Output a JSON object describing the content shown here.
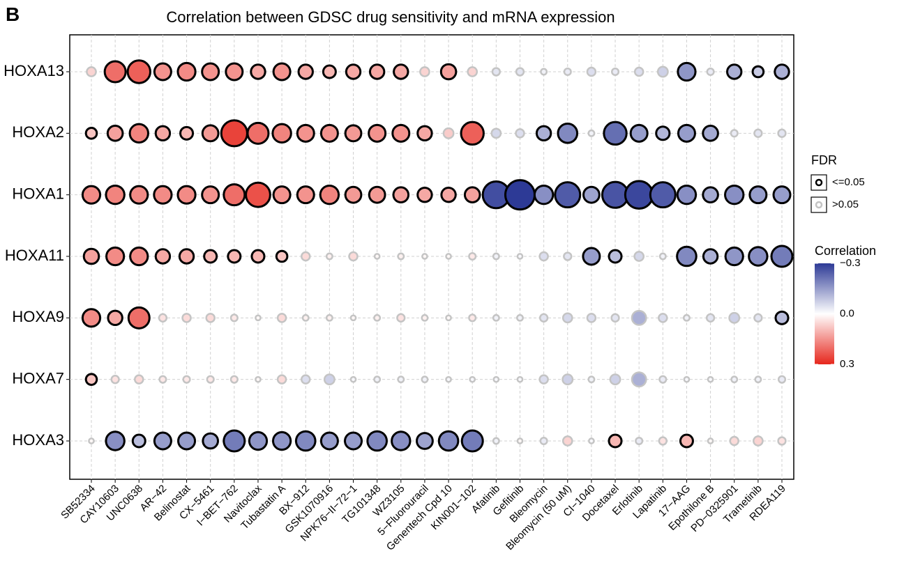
{
  "panel_label": "B",
  "chart_data": {
    "type": "dotmatrix",
    "title": "Correlation between GDSC drug sensitivity and mRNA expression",
    "categories": [
      "SB52334",
      "CAY10603",
      "UNC0638",
      "AR−42",
      "Belinostat",
      "CX−5461",
      "I−BET−762",
      "Navitoclax",
      "Tubastatin A",
      "BX−912",
      "GSK1070916",
      "NPK76−II−72−1",
      "TG101348",
      "WZ3105",
      "5−Fluorouracil",
      "Genentech Cpd 10",
      "KIN001−102",
      "Afatinib",
      "Gefitinib",
      "Bleomycin",
      "Bleomycin (50 uM)",
      "CI−1040",
      "Docetaxel",
      "Erlotinib",
      "Lapatinib",
      "17−AAG",
      "Epothilone B",
      "PD−0325901",
      "Trametinib",
      "RDEA119"
    ],
    "series": [
      {
        "name": "HOXA13",
        "values": [
          0.06,
          0.2,
          0.22,
          0.15,
          0.16,
          0.15,
          0.15,
          0.12,
          0.15,
          0.12,
          0.1,
          0.12,
          0.12,
          0.12,
          0.06,
          0.13,
          0.06,
          -0.04,
          -0.04,
          -0.02,
          -0.03,
          -0.05,
          -0.03,
          -0.05,
          -0.07,
          -0.16,
          -0.03,
          -0.12,
          -0.08,
          -0.12
        ],
        "significant": [
          false,
          true,
          true,
          true,
          true,
          true,
          true,
          true,
          true,
          true,
          true,
          true,
          true,
          true,
          false,
          true,
          false,
          false,
          false,
          false,
          false,
          false,
          false,
          false,
          false,
          true,
          false,
          true,
          true,
          true
        ]
      },
      {
        "name": "HOXA2",
        "values": [
          0.08,
          0.13,
          0.17,
          0.12,
          0.1,
          0.14,
          0.26,
          0.2,
          0.17,
          0.15,
          0.15,
          0.14,
          0.15,
          0.15,
          0.12,
          0.07,
          0.22,
          -0.06,
          -0.05,
          -0.12,
          -0.18,
          -0.02,
          -0.22,
          -0.15,
          -0.11,
          -0.15,
          -0.13,
          -0.03,
          -0.04,
          -0.04
        ],
        "significant": [
          true,
          true,
          true,
          true,
          true,
          true,
          true,
          true,
          true,
          true,
          true,
          true,
          true,
          true,
          true,
          false,
          true,
          false,
          false,
          true,
          true,
          false,
          true,
          true,
          true,
          true,
          true,
          false,
          false,
          false
        ]
      },
      {
        "name": "HOXA1",
        "values": [
          0.16,
          0.17,
          0.16,
          0.16,
          0.16,
          0.15,
          0.2,
          0.24,
          0.15,
          0.15,
          0.17,
          0.14,
          0.14,
          0.13,
          0.12,
          0.12,
          0.13,
          -0.27,
          -0.3,
          -0.17,
          -0.25,
          -0.14,
          -0.26,
          -0.28,
          -0.25,
          -0.17,
          -0.13,
          -0.17,
          -0.15,
          -0.15
        ],
        "significant": [
          true,
          true,
          true,
          true,
          true,
          true,
          true,
          true,
          true,
          true,
          true,
          true,
          true,
          true,
          true,
          true,
          true,
          true,
          true,
          true,
          true,
          true,
          true,
          true,
          true,
          true,
          true,
          true,
          true,
          true
        ]
      },
      {
        "name": "HOXA11",
        "values": [
          0.13,
          0.16,
          0.16,
          0.12,
          0.12,
          0.1,
          0.1,
          0.1,
          0.08,
          0.05,
          0.02,
          0.05,
          0.01,
          0.02,
          0.01,
          0.01,
          0.03,
          -0.02,
          -0.01,
          -0.05,
          -0.04,
          -0.15,
          -0.1,
          -0.06,
          -0.02,
          -0.18,
          -0.12,
          -0.16,
          -0.17,
          -0.2
        ],
        "significant": [
          true,
          true,
          true,
          true,
          true,
          true,
          true,
          true,
          true,
          false,
          false,
          false,
          false,
          false,
          false,
          false,
          false,
          false,
          false,
          false,
          false,
          true,
          true,
          false,
          false,
          true,
          true,
          true,
          true,
          true
        ]
      },
      {
        "name": "HOXA9",
        "values": [
          0.16,
          0.12,
          0.2,
          0.04,
          0.05,
          0.05,
          0.03,
          0.01,
          0.05,
          0.02,
          0.02,
          0.01,
          0.02,
          0.04,
          0.02,
          0.01,
          0.03,
          -0.02,
          -0.02,
          -0.04,
          -0.06,
          -0.05,
          -0.04,
          -0.12,
          -0.05,
          -0.02,
          -0.04,
          -0.07,
          -0.04,
          -0.1
        ],
        "significant": [
          true,
          true,
          true,
          false,
          false,
          false,
          false,
          false,
          false,
          false,
          false,
          false,
          false,
          false,
          false,
          false,
          false,
          false,
          false,
          false,
          false,
          false,
          false,
          false,
          false,
          false,
          false,
          false,
          false,
          true
        ]
      },
      {
        "name": "HOXA7",
        "values": [
          0.08,
          0.04,
          0.05,
          0.03,
          0.03,
          0.03,
          0.03,
          0.01,
          0.05,
          -0.05,
          -0.07,
          -0.01,
          -0.02,
          -0.02,
          -0.02,
          -0.01,
          -0.01,
          -0.01,
          -0.01,
          -0.05,
          -0.07,
          -0.02,
          -0.07,
          -0.12,
          -0.03,
          -0.01,
          -0.01,
          -0.02,
          -0.02,
          -0.03
        ],
        "significant": [
          true,
          false,
          false,
          false,
          false,
          false,
          false,
          false,
          false,
          false,
          false,
          false,
          false,
          false,
          false,
          false,
          false,
          false,
          false,
          false,
          false,
          false,
          false,
          false,
          false,
          false,
          false,
          false,
          false,
          false
        ]
      },
      {
        "name": "HOXA3",
        "values": [
          0.01,
          -0.17,
          -0.1,
          -0.15,
          -0.15,
          -0.13,
          -0.2,
          -0.16,
          -0.16,
          -0.18,
          -0.15,
          -0.15,
          -0.18,
          -0.17,
          -0.14,
          -0.18,
          -0.2,
          -0.02,
          0.01,
          -0.03,
          0.06,
          -0.01,
          0.1,
          -0.03,
          0.04,
          0.1,
          0.01,
          0.05,
          0.06,
          0.04
        ],
        "significant": [
          false,
          true,
          true,
          true,
          true,
          true,
          true,
          true,
          true,
          true,
          true,
          true,
          true,
          true,
          true,
          true,
          true,
          false,
          false,
          false,
          false,
          false,
          true,
          false,
          false,
          true,
          false,
          false,
          false,
          false
        ]
      }
    ],
    "grid": true,
    "colormap": {
      "negative": "#2d3a96",
      "zero": "#ffffff",
      "positive": "#e6261c"
    },
    "border_colors": {
      "significant": "#000000",
      "nonsignificant": "#c4c4c4"
    },
    "fdr_legend": {
      "title": "FDR",
      "significant_label": "<=0.05",
      "nonsignificant_label": ">0.05"
    },
    "color_legend": {
      "title": "Correlation",
      "clim": [
        -0.3,
        0.3
      ],
      "cticks": [
        {
          "value": -0.3,
          "label": "−0.3"
        },
        {
          "value": 0,
          "label": "0.0"
        },
        {
          "value": 0.3,
          "label": "0.3"
        }
      ]
    }
  }
}
